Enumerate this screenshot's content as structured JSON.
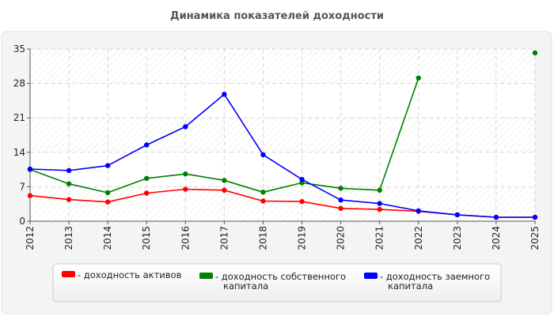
{
  "chart_data": {
    "type": "line",
    "title": "Динамика показателей доходности",
    "xlabel": "",
    "ylabel": "",
    "categories": [
      "2012",
      "2013",
      "2014",
      "2015",
      "2016",
      "2017",
      "2018",
      "2019",
      "2020",
      "2021",
      "2022",
      "2023",
      "2024",
      "2025"
    ],
    "yticks": [
      "0",
      "7",
      "14",
      "21",
      "28",
      "35"
    ],
    "ylim": [
      0,
      35
    ],
    "grid": true,
    "legend_position": "bottom",
    "series": [
      {
        "name_lines": [
          "- доходность активов"
        ],
        "color": "#ff0000",
        "values": [
          5.2,
          4.4,
          3.9,
          5.7,
          6.5,
          6.3,
          4.1,
          4.0,
          2.6,
          2.4,
          2.0,
          1.3,
          0.8,
          0.8
        ]
      },
      {
        "name_lines": [
          "- доходность собственного",
          "капитала"
        ],
        "color": "#008000",
        "values": [
          10.5,
          7.6,
          5.8,
          8.7,
          9.6,
          8.3,
          5.9,
          7.8,
          6.7,
          6.3,
          29.1,
          null,
          null,
          34.2
        ]
      },
      {
        "name_lines": [
          "- доходность заемного",
          "капитала"
        ],
        "color": "#0000ff",
        "values": [
          10.6,
          10.3,
          11.3,
          15.5,
          19.2,
          25.8,
          13.5,
          8.5,
          4.3,
          3.6,
          2.1,
          1.3,
          0.8,
          0.8
        ]
      }
    ]
  }
}
